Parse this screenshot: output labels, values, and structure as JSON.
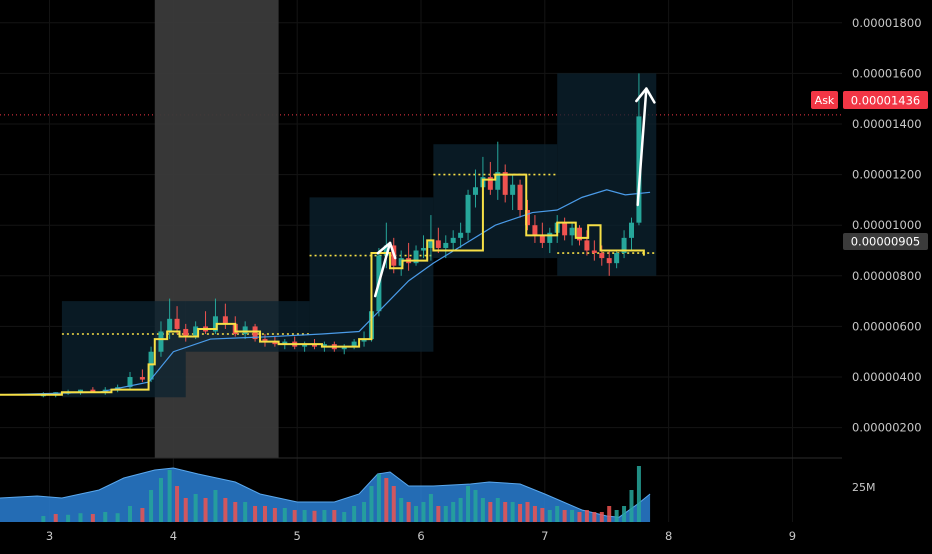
{
  "chart_data": {
    "type": "candlestick",
    "title": "",
    "xlabel": "",
    "ylabel": "",
    "x_ticks": [
      "3",
      "4",
      "5",
      "6",
      "7",
      "8",
      "9"
    ],
    "x_range": [
      2.6,
      9.4
    ],
    "y_ticks": [
      "0.00000200",
      "0.00000400",
      "0.00000600",
      "0.00000800",
      "0.00001000",
      "0.00001200",
      "0.00001400",
      "0.00001600",
      "0.00001800"
    ],
    "y_range": [
      8e-07,
      1.89e-05
    ],
    "ask": {
      "label": "Ask",
      "value": "0.00001436",
      "color": "#f23645"
    },
    "last_price": {
      "value": "0.00000905",
      "color": "#3b3b3b"
    },
    "volume_label": "25M",
    "colors": {
      "up": "#26a69a",
      "down": "#ef5350",
      "step": "#f7e046",
      "ma": "#4a9be8",
      "vol_fill": "#2a7fd4",
      "box": "#0c2330",
      "session": "#3a3a3a",
      "arrow": "#ffffff"
    },
    "session_band": {
      "from": 3.85,
      "to": 4.85
    },
    "boxes": [
      {
        "from": 3.1,
        "to": 4.1,
        "low": 3.2e-06,
        "high": 7e-06
      },
      {
        "from": 4.1,
        "to": 5.1,
        "low": 5e-06,
        "high": 7e-06
      },
      {
        "from": 5.1,
        "to": 6.1,
        "low": 5e-06,
        "high": 1.11e-05
      },
      {
        "from": 6.1,
        "to": 7.1,
        "low": 8.7e-06,
        "high": 1.32e-05
      },
      {
        "from": 7.1,
        "to": 7.9,
        "low": 8e-06,
        "high": 1.6e-05
      }
    ],
    "dotted_levels": [
      {
        "from": 3.1,
        "to": 5.1,
        "value": 5.7e-06
      },
      {
        "from": 5.1,
        "to": 6.1,
        "value": 8.8e-06
      },
      {
        "from": 6.1,
        "to": 7.1,
        "value": 1.2e-05
      },
      {
        "from": 7.1,
        "to": 7.9,
        "value": 8.9e-06
      }
    ],
    "step_line": [
      [
        2.6,
        3.3e-06
      ],
      [
        3.1,
        3.3e-06
      ],
      [
        3.1,
        3.4e-06
      ],
      [
        3.5,
        3.4e-06
      ],
      [
        3.5,
        3.5e-06
      ],
      [
        3.8,
        3.5e-06
      ],
      [
        3.8,
        4.5e-06
      ],
      [
        3.85,
        4.5e-06
      ],
      [
        3.85,
        5.5e-06
      ],
      [
        3.95,
        5.5e-06
      ],
      [
        3.95,
        5.8e-06
      ],
      [
        4.05,
        5.8e-06
      ],
      [
        4.05,
        5.6e-06
      ],
      [
        4.2,
        5.6e-06
      ],
      [
        4.2,
        5.9e-06
      ],
      [
        4.35,
        5.9e-06
      ],
      [
        4.35,
        6.1e-06
      ],
      [
        4.5,
        6.1e-06
      ],
      [
        4.5,
        5.8e-06
      ],
      [
        4.7,
        5.8e-06
      ],
      [
        4.7,
        5.4e-06
      ],
      [
        4.85,
        5.4e-06
      ],
      [
        4.85,
        5.3e-06
      ],
      [
        5.2,
        5.3e-06
      ],
      [
        5.2,
        5.2e-06
      ],
      [
        5.5,
        5.2e-06
      ],
      [
        5.5,
        5.5e-06
      ],
      [
        5.6,
        5.5e-06
      ],
      [
        5.6,
        8.9e-06
      ],
      [
        5.75,
        8.9e-06
      ],
      [
        5.75,
        8.3e-06
      ],
      [
        5.85,
        8.3e-06
      ],
      [
        5.85,
        8.6e-06
      ],
      [
        6.05,
        8.6e-06
      ],
      [
        6.05,
        9.4e-06
      ],
      [
        6.1,
        9.4e-06
      ],
      [
        6.1,
        9e-06
      ],
      [
        6.5,
        9e-06
      ],
      [
        6.5,
        1.18e-05
      ],
      [
        6.6,
        1.18e-05
      ],
      [
        6.6,
        1.2e-05
      ],
      [
        6.85,
        1.2e-05
      ],
      [
        6.85,
        9.6e-06
      ],
      [
        7.1,
        9.6e-06
      ],
      [
        7.1,
        1.01e-05
      ],
      [
        7.25,
        1.01e-05
      ],
      [
        7.25,
        9.5e-06
      ],
      [
        7.35,
        9.5e-06
      ],
      [
        7.35,
        1e-05
      ],
      [
        7.45,
        1e-05
      ],
      [
        7.45,
        9e-06
      ],
      [
        7.8,
        9e-06
      ],
      [
        7.8,
        8.8e-06
      ]
    ],
    "ma_line": [
      [
        2.6,
        3.3e-06
      ],
      [
        3.4,
        3.4e-06
      ],
      [
        3.8,
        3.8e-06
      ],
      [
        4.0,
        5e-06
      ],
      [
        4.3,
        5.5e-06
      ],
      [
        4.8,
        5.6e-06
      ],
      [
        5.2,
        5.7e-06
      ],
      [
        5.5,
        5.8e-06
      ],
      [
        5.7,
        6.8e-06
      ],
      [
        5.9,
        7.8e-06
      ],
      [
        6.1,
        8.5e-06
      ],
      [
        6.3,
        9.1e-06
      ],
      [
        6.6,
        1e-05
      ],
      [
        6.9,
        1.05e-05
      ],
      [
        7.1,
        1.06e-05
      ],
      [
        7.3,
        1.11e-05
      ],
      [
        7.5,
        1.14e-05
      ],
      [
        7.65,
        1.12e-05
      ],
      [
        7.85,
        1.13e-05
      ]
    ],
    "candles": [
      [
        2.95,
        3.3e-06,
        3.4e-06,
        3.2e-06,
        3.3e-06
      ],
      [
        3.05,
        3.3e-06,
        3.4e-06,
        3.2e-06,
        3.4e-06
      ],
      [
        3.15,
        3.4e-06,
        3.5e-06,
        3.3e-06,
        3.4e-06
      ],
      [
        3.25,
        3.4e-06,
        3.5e-06,
        3.3e-06,
        3.5e-06
      ],
      [
        3.35,
        3.5e-06,
        3.6e-06,
        3.4e-06,
        3.4e-06
      ],
      [
        3.45,
        3.4e-06,
        3.6e-06,
        3.3e-06,
        3.5e-06
      ],
      [
        3.55,
        3.5e-06,
        3.7e-06,
        3.4e-06,
        3.6e-06
      ],
      [
        3.65,
        3.6e-06,
        4.2e-06,
        3.5e-06,
        4e-06
      ],
      [
        3.75,
        4e-06,
        4.3e-06,
        3.8e-06,
        3.9e-06
      ],
      [
        3.82,
        3.9e-06,
        5.2e-06,
        3.8e-06,
        5e-06
      ],
      [
        3.9,
        5e-06,
        6.2e-06,
        4.8e-06,
        5.8e-06
      ],
      [
        3.97,
        5.8e-06,
        7.1e-06,
        5.5e-06,
        6.3e-06
      ],
      [
        4.03,
        6.3e-06,
        6.8e-06,
        5.7e-06,
        5.9e-06
      ],
      [
        4.1,
        5.9e-06,
        6.1e-06,
        5.4e-06,
        5.6e-06
      ],
      [
        4.18,
        5.6e-06,
        6.2e-06,
        5.5e-06,
        6e-06
      ],
      [
        4.26,
        6e-06,
        6.6e-06,
        5.7e-06,
        5.8e-06
      ],
      [
        4.34,
        5.8e-06,
        7.1e-06,
        5.7e-06,
        6.4e-06
      ],
      [
        4.42,
        6.4e-06,
        6.9e-06,
        5.9e-06,
        6.1e-06
      ],
      [
        4.5,
        6.1e-06,
        6.4e-06,
        5.6e-06,
        5.7e-06
      ],
      [
        4.58,
        5.7e-06,
        6.2e-06,
        5.5e-06,
        6e-06
      ],
      [
        4.66,
        6e-06,
        6.1e-06,
        5.4e-06,
        5.5e-06
      ],
      [
        4.74,
        5.5e-06,
        5.7e-06,
        5.2e-06,
        5.4e-06
      ],
      [
        4.82,
        5.4e-06,
        5.6e-06,
        5.2e-06,
        5.3e-06
      ],
      [
        4.9,
        5.3e-06,
        5.5e-06,
        5.1e-06,
        5.4e-06
      ],
      [
        4.98,
        5.4e-06,
        5.6e-06,
        5.1e-06,
        5.2e-06
      ],
      [
        5.06,
        5.2e-06,
        5.4e-06,
        5e-06,
        5.3e-06
      ],
      [
        5.14,
        5.3e-06,
        5.5e-06,
        5.1e-06,
        5.2e-06
      ],
      [
        5.22,
        5.2e-06,
        5.4e-06,
        5e-06,
        5.3e-06
      ],
      [
        5.3,
        5.3e-06,
        5.4e-06,
        5e-06,
        5.1e-06
      ],
      [
        5.38,
        5.1e-06,
        5.3e-06,
        4.9e-06,
        5.2e-06
      ],
      [
        5.46,
        5.2e-06,
        5.5e-06,
        5.1e-06,
        5.4e-06
      ],
      [
        5.54,
        5.4e-06,
        5.8e-06,
        5.2e-06,
        5.5e-06
      ],
      [
        5.6,
        5.5e-06,
        6.8e-06,
        5.4e-06,
        6.6e-06
      ],
      [
        5.66,
        6.6e-06,
        9.1e-06,
        6.4e-06,
        8.8e-06
      ],
      [
        5.72,
        8.8e-06,
        1.01e-05,
        8.3e-06,
        9.2e-06
      ],
      [
        5.78,
        9.2e-06,
        9.5e-06,
        8.1e-06,
        8.4e-06
      ],
      [
        5.84,
        8.4e-06,
        9e-06,
        8e-06,
        8.7e-06
      ],
      [
        5.9,
        8.7e-06,
        9.3e-06,
        8.2e-06,
        8.5e-06
      ],
      [
        5.96,
        8.5e-06,
        9.2e-06,
        8.4e-06,
        9e-06
      ],
      [
        6.02,
        9e-06,
        9.6e-06,
        8.7e-06,
        9.1e-06
      ],
      [
        6.08,
        9.1e-06,
        1.04e-05,
        8.6e-06,
        9.4e-06
      ],
      [
        6.14,
        9.4e-06,
        9.9e-06,
        8.9e-06,
        9.1e-06
      ],
      [
        6.2,
        9.1e-06,
        9.6e-06,
        8.7e-06,
        9.3e-06
      ],
      [
        6.26,
        9.3e-06,
        9.8e-06,
        9e-06,
        9.5e-06
      ],
      [
        6.32,
        9.5e-06,
        1.01e-05,
        9.1e-06,
        9.7e-06
      ],
      [
        6.38,
        9.7e-06,
        1.14e-05,
        9.4e-06,
        1.12e-05
      ],
      [
        6.44,
        1.12e-05,
        1.22e-05,
        1.07e-05,
        1.15e-05
      ],
      [
        6.5,
        1.15e-05,
        1.27e-05,
        1.11e-05,
        1.19e-05
      ],
      [
        6.56,
        1.19e-05,
        1.25e-05,
        1.12e-05,
        1.14e-05
      ],
      [
        6.62,
        1.14e-05,
        1.33e-05,
        1.1e-05,
        1.21e-05
      ],
      [
        6.68,
        1.21e-05,
        1.24e-05,
        1.09e-05,
        1.12e-05
      ],
      [
        6.74,
        1.12e-05,
        1.2e-05,
        1.06e-05,
        1.16e-05
      ],
      [
        6.8,
        1.16e-05,
        1.18e-05,
        1.03e-05,
        1.06e-05
      ],
      [
        6.86,
        1.06e-05,
        1.1e-05,
        9.8e-06,
        1e-05
      ],
      [
        6.92,
        1e-05,
        1.04e-05,
        9.3e-06,
        9.6e-06
      ],
      [
        6.98,
        9.6e-06,
        1.01e-05,
        9.1e-06,
        9.3e-06
      ],
      [
        7.04,
        9.3e-06,
        9.9e-06,
        8.9e-06,
        9.7e-06
      ],
      [
        7.1,
        9.7e-06,
        1.04e-05,
        9.3e-06,
        1.01e-05
      ],
      [
        7.16,
        1.01e-05,
        1.03e-05,
        9.4e-06,
        9.6e-06
      ],
      [
        7.22,
        9.6e-06,
        1.01e-05,
        9.2e-06,
        9.9e-06
      ],
      [
        7.28,
        9.9e-06,
        1e-05,
        9.2e-06,
        9.4e-06
      ],
      [
        7.34,
        9.4e-06,
        9.8e-06,
        8.8e-06,
        9e-06
      ],
      [
        7.4,
        9e-06,
        9.4e-06,
        8.6e-06,
        8.9e-06
      ],
      [
        7.46,
        8.9e-06,
        9.2e-06,
        8.4e-06,
        8.7e-06
      ],
      [
        7.52,
        8.7e-06,
        9e-06,
        8e-06,
        8.5e-06
      ],
      [
        7.58,
        8.5e-06,
        9e-06,
        8.3e-06,
        8.9e-06
      ],
      [
        7.64,
        8.9e-06,
        9.8e-06,
        8.7e-06,
        9.5e-06
      ],
      [
        7.7,
        9.5e-06,
        1.03e-05,
        9e-06,
        1.01e-05
      ],
      [
        7.76,
        1.01e-05,
        1.6e-05,
        1e-05,
        1.43e-05
      ]
    ],
    "volume": [
      [
        2.95,
        1.5,
        1
      ],
      [
        3.05,
        2,
        0
      ],
      [
        3.15,
        1.8,
        1
      ],
      [
        3.25,
        2.2,
        1
      ],
      [
        3.35,
        2,
        0
      ],
      [
        3.45,
        2.5,
        1
      ],
      [
        3.55,
        2.2,
        1
      ],
      [
        3.65,
        4,
        1
      ],
      [
        3.75,
        3.5,
        0
      ],
      [
        3.82,
        8,
        1
      ],
      [
        3.9,
        11,
        1
      ],
      [
        3.97,
        13,
        1
      ],
      [
        4.03,
        9,
        0
      ],
      [
        4.1,
        6,
        0
      ],
      [
        4.18,
        7,
        1
      ],
      [
        4.26,
        6,
        0
      ],
      [
        4.34,
        8,
        1
      ],
      [
        4.42,
        6,
        0
      ],
      [
        4.5,
        5,
        0
      ],
      [
        4.58,
        5,
        1
      ],
      [
        4.66,
        4,
        0
      ],
      [
        4.74,
        4,
        0
      ],
      [
        4.82,
        3.5,
        0
      ],
      [
        4.9,
        3.5,
        1
      ],
      [
        4.98,
        3,
        0
      ],
      [
        5.06,
        3,
        1
      ],
      [
        5.14,
        2.8,
        0
      ],
      [
        5.22,
        3,
        1
      ],
      [
        5.3,
        3,
        0
      ],
      [
        5.38,
        2.5,
        1
      ],
      [
        5.46,
        4,
        1
      ],
      [
        5.54,
        5,
        1
      ],
      [
        5.6,
        9,
        1
      ],
      [
        5.66,
        12,
        1
      ],
      [
        5.72,
        11,
        0
      ],
      [
        5.78,
        9,
        0
      ],
      [
        5.84,
        6,
        1
      ],
      [
        5.9,
        5,
        0
      ],
      [
        5.96,
        4,
        1
      ],
      [
        6.02,
        5,
        1
      ],
      [
        6.08,
        7,
        1
      ],
      [
        6.14,
        4,
        0
      ],
      [
        6.2,
        4,
        1
      ],
      [
        6.26,
        5,
        1
      ],
      [
        6.32,
        6,
        1
      ],
      [
        6.38,
        9,
        1
      ],
      [
        6.44,
        8,
        1
      ],
      [
        6.5,
        6,
        1
      ],
      [
        6.56,
        5,
        0
      ],
      [
        6.62,
        6,
        1
      ],
      [
        6.68,
        5,
        0
      ],
      [
        6.74,
        5,
        1
      ],
      [
        6.8,
        4.5,
        0
      ],
      [
        6.86,
        5,
        0
      ],
      [
        6.92,
        4,
        0
      ],
      [
        6.98,
        3.5,
        0
      ],
      [
        7.04,
        3,
        1
      ],
      [
        7.1,
        4,
        1
      ],
      [
        7.16,
        3,
        0
      ],
      [
        7.22,
        3,
        1
      ],
      [
        7.28,
        2.5,
        0
      ],
      [
        7.34,
        3,
        0
      ],
      [
        7.4,
        2.5,
        0
      ],
      [
        7.46,
        2.5,
        0
      ],
      [
        7.52,
        4,
        0
      ],
      [
        7.58,
        3,
        1
      ],
      [
        7.64,
        4,
        1
      ],
      [
        7.7,
        8,
        1
      ],
      [
        7.76,
        14,
        1
      ]
    ],
    "vol_area": [
      [
        2.6,
        6
      ],
      [
        2.9,
        6.5
      ],
      [
        3.1,
        6
      ],
      [
        3.4,
        8
      ],
      [
        3.6,
        11
      ],
      [
        3.85,
        13
      ],
      [
        4.0,
        13.5
      ],
      [
        4.2,
        12
      ],
      [
        4.5,
        10
      ],
      [
        4.7,
        7
      ],
      [
        5.0,
        5
      ],
      [
        5.3,
        5
      ],
      [
        5.5,
        7
      ],
      [
        5.65,
        12
      ],
      [
        5.75,
        12.5
      ],
      [
        5.9,
        9
      ],
      [
        6.1,
        9
      ],
      [
        6.4,
        9.5
      ],
      [
        6.55,
        10
      ],
      [
        6.8,
        9.5
      ],
      [
        7.0,
        7
      ],
      [
        7.3,
        3
      ],
      [
        7.5,
        1.5
      ],
      [
        7.6,
        1.2
      ],
      [
        7.75,
        4.5
      ],
      [
        7.85,
        7
      ]
    ],
    "arrows": [
      {
        "from": [
          5.63,
          7.2e-06
        ],
        "to": [
          5.75,
          9.3e-06
        ]
      },
      {
        "from": [
          7.75,
          1.08e-05
        ],
        "to": [
          7.82,
          1.54e-05
        ]
      }
    ]
  }
}
